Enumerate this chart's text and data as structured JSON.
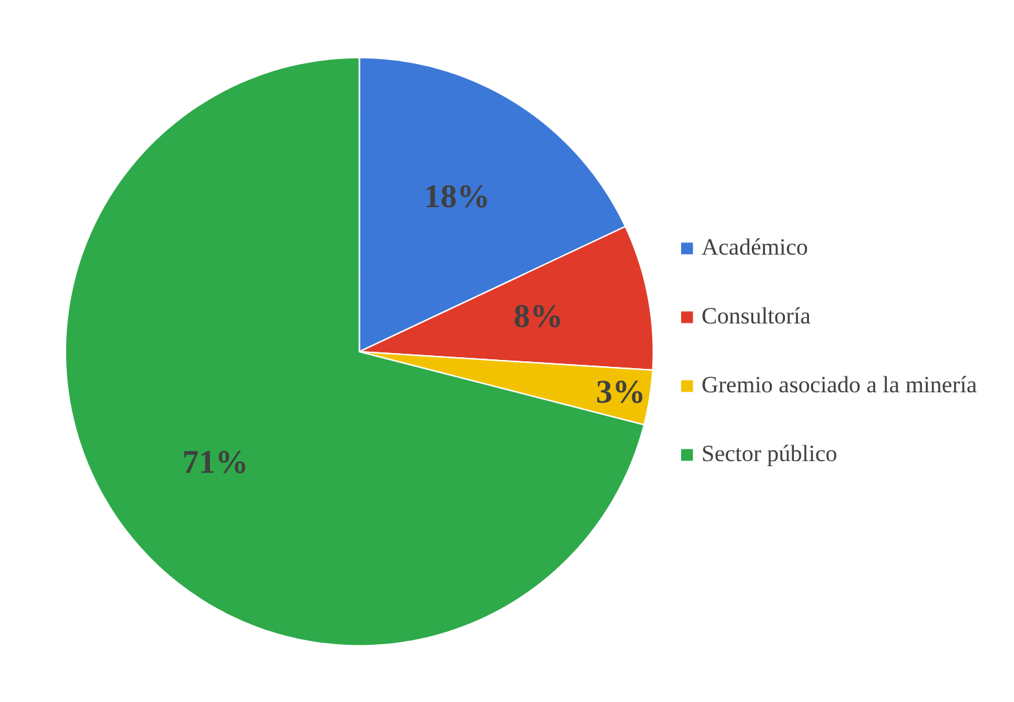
{
  "chart_data": {
    "type": "pie",
    "categories": [
      "Académico",
      "Consultoría",
      "Gremio asociado a la minería",
      "Sector público"
    ],
    "values": [
      18,
      8,
      3,
      71
    ],
    "value_labels": [
      "18%",
      "8%",
      "3%",
      "71%"
    ],
    "colors": [
      "#3c78d8",
      "#e03a2a",
      "#f2c200",
      "#2eaa4a"
    ],
    "legend": "right"
  }
}
